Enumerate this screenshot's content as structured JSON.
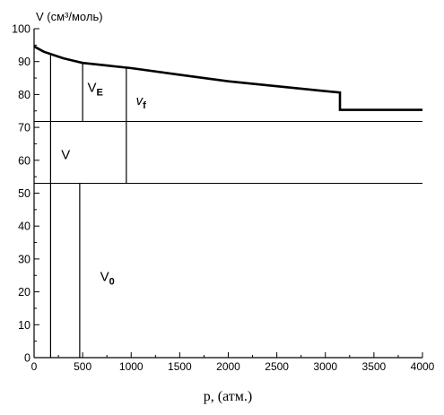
{
  "chart_data": {
    "type": "line",
    "title": "",
    "xlabel": "p, (атм.)",
    "ylabel": "V (см³/моль)",
    "xlim": [
      0,
      4000
    ],
    "ylim": [
      0,
      100
    ],
    "x_ticks": [
      "0",
      "500",
      "1000",
      "1500",
      "2000",
      "2500",
      "3000",
      "3500",
      "4000"
    ],
    "y_ticks": [
      "0",
      "10",
      "20",
      "30",
      "40",
      "50",
      "60",
      "70",
      "80",
      "90",
      "100"
    ],
    "series": [
      {
        "x": [
          0,
          100,
          200,
          300,
          400,
          500,
          750,
          1000,
          1500,
          2000,
          2500,
          3000,
          3150,
          3150,
          3500,
          4000
        ],
        "y": [
          94.6,
          93.0,
          92.0,
          91.0,
          90.3,
          89.6,
          88.8,
          88.0,
          86.0,
          84.0,
          82.5,
          81.0,
          80.6,
          75.3,
          75.3,
          75.3
        ]
      }
    ],
    "hlines": [
      71.8,
      53.0
    ],
    "vlines": [
      {
        "x": 170,
        "y_top": 92.4
      },
      {
        "x": 470,
        "y_top": 53.0
      },
      {
        "x": 500,
        "y_top": 89.6,
        "y_bottom": 71.8
      },
      {
        "x": 950,
        "y_top": 88.0,
        "y_bottom": 53.0
      }
    ],
    "annotations": [
      {
        "main": "V",
        "sub": "",
        "x": 280,
        "y": 60.3
      },
      {
        "main": "V",
        "sub": "E",
        "x": 550,
        "y": 80.8
      },
      {
        "main": "v",
        "sub": "f",
        "x": 1050,
        "y": 76.8
      },
      {
        "main": "V",
        "sub": "0",
        "x": 680,
        "y": 23.3
      }
    ],
    "grid": false,
    "legend": "none"
  }
}
